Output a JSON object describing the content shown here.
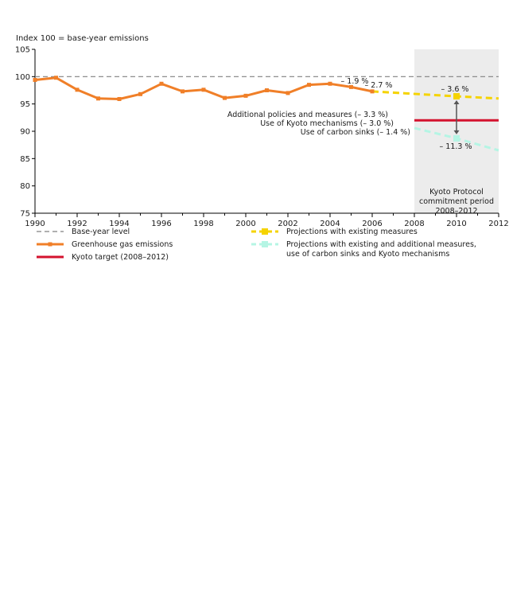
{
  "chart_data": {
    "type": "line",
    "title": "",
    "ylabel": "Index 100 = base-year emissions",
    "xlabel": "",
    "xlim": [
      1990,
      2012
    ],
    "ylim": [
      75,
      105
    ],
    "x_ticks": [
      "1990",
      "1992",
      "1994",
      "1996",
      "1998",
      "2000",
      "2002",
      "2004",
      "2006",
      "2008",
      "2010",
      "2012"
    ],
    "y_ticks": [
      "75",
      "80",
      "85",
      "90",
      "95",
      "100",
      "105"
    ],
    "grid": false,
    "series": [
      {
        "name": "Greenhouse gas emissions",
        "color": "#f07f28",
        "style": "solid-with-square-markers",
        "points": [
          [
            1990,
            99.4
          ],
          [
            1991,
            99.8
          ],
          [
            1992,
            97.6
          ],
          [
            1993,
            96.0
          ],
          [
            1994,
            95.9
          ],
          [
            1995,
            96.8
          ],
          [
            1996,
            98.7
          ],
          [
            1997,
            97.3
          ],
          [
            1998,
            97.6
          ],
          [
            1999,
            96.1
          ],
          [
            2000,
            96.5
          ],
          [
            2001,
            97.5
          ],
          [
            2002,
            97.0
          ],
          [
            2003,
            98.5
          ],
          [
            2004,
            98.7
          ],
          [
            2005,
            98.1
          ],
          [
            2006,
            97.3
          ]
        ]
      },
      {
        "name": "Base-year level",
        "color": "#808080",
        "style": "dashed",
        "points": [
          [
            1990,
            100
          ],
          [
            2012,
            100
          ]
        ]
      },
      {
        "name": "Projections with existing measures",
        "color": "#f5d300",
        "style": "dashed",
        "points": [
          [
            2006,
            97.3
          ],
          [
            2010,
            96.4
          ],
          [
            2012,
            96.0
          ]
        ]
      },
      {
        "name": "Projections with existing and additional measures, use of carbon sinks and Kyoto mechanisms",
        "color": "#b5f5e4",
        "style": "dashed",
        "points": [
          [
            2008,
            90.6
          ],
          [
            2010,
            88.7
          ],
          [
            2012,
            86.5
          ]
        ]
      },
      {
        "name": "Kyoto target (2008–2012)",
        "color": "#d4122e",
        "style": "solid",
        "points": [
          [
            2008,
            92.0
          ],
          [
            2012,
            92.0
          ]
        ]
      }
    ],
    "shaded_region": {
      "x": [
        2008,
        2012
      ],
      "color": "#ececec",
      "label": [
        "Kyoto Protocol",
        "commitment period",
        "2008–2012"
      ]
    },
    "annotations": [
      {
        "id": "a1",
        "text": "– 1.9 %"
      },
      {
        "id": "a2",
        "text": "– 2.7 %"
      },
      {
        "id": "a3",
        "text": "– 3.6 %"
      },
      {
        "id": "a4",
        "text": "Additional policies and measures (– 3.3 %)"
      },
      {
        "id": "a5",
        "text": "Use of Kyoto mechanisms (– 3.0 %)"
      },
      {
        "id": "a6",
        "text": "Use of carbon sinks (– 1.4 %)"
      },
      {
        "id": "a7",
        "text": "– 11.3 %"
      }
    ],
    "legend": {
      "placement": "bottom",
      "entries": [
        {
          "label": "Base-year level",
          "series": "Base-year level"
        },
        {
          "label": "Projections with existing measures",
          "series": "Projections with existing measures"
        },
        {
          "label": "Greenhouse gas emissions",
          "series": "Greenhouse gas emissions"
        },
        {
          "label": "Projections with existing and additional measures,",
          "label2": "use of carbon sinks and Kyoto mechanisms",
          "series": "Projections with existing and additional measures, use of carbon sinks and Kyoto mechanisms"
        },
        {
          "label": "Kyoto target (2008–2012)",
          "series": "Kyoto target (2008–2012)"
        }
      ]
    }
  }
}
